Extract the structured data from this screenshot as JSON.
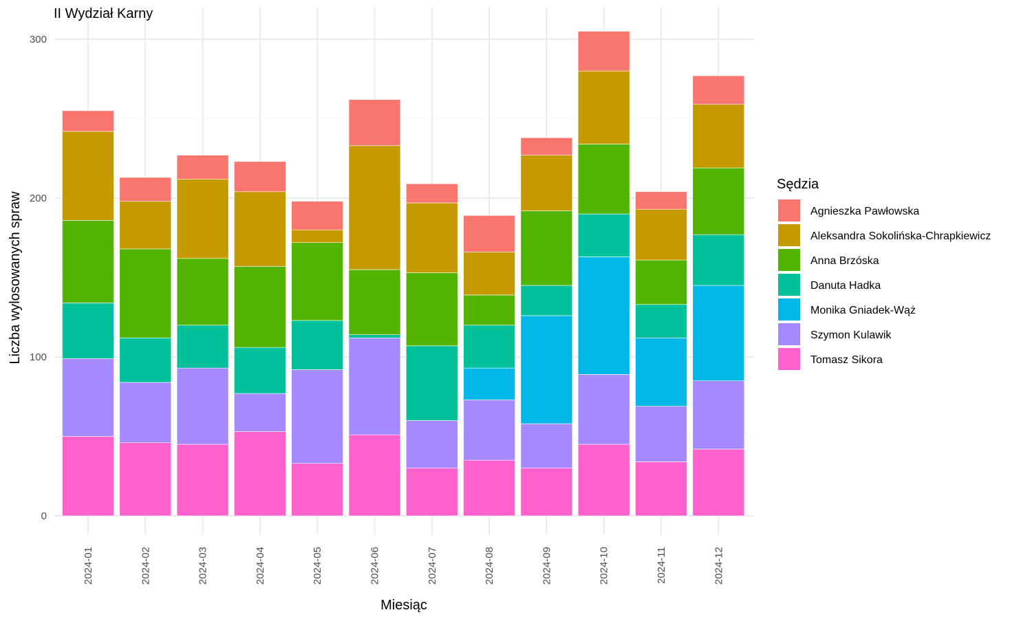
{
  "chart_data": {
    "type": "bar",
    "stacked": true,
    "title": "II Wydział Karny",
    "xlabel": "Miesiąc",
    "ylabel": "Liczba wylosowanych spraw",
    "ylim": [
      0,
      305
    ],
    "yticks": [
      0,
      100,
      200,
      300
    ],
    "grid": true,
    "legend_title": "Sędzia",
    "legend_position": "right",
    "categories": [
      "2024-01",
      "2024-02",
      "2024-03",
      "2024-04",
      "2024-05",
      "2024-06",
      "2024-07",
      "2024-08",
      "2024-09",
      "2024-10",
      "2024-11",
      "2024-12"
    ],
    "series": [
      {
        "name": "Tomasz Sikora",
        "color": "#FF61CC",
        "values": [
          50,
          46,
          45,
          53,
          33,
          51,
          30,
          35,
          30,
          45,
          34,
          42
        ]
      },
      {
        "name": "Szymon Kulawik",
        "color": "#A58AFF",
        "values": [
          49,
          38,
          48,
          24,
          59,
          61,
          30,
          38,
          28,
          44,
          35,
          43
        ]
      },
      {
        "name": "Monika Gniadek-Wąż",
        "color": "#00B8E7",
        "values": [
          0,
          0,
          0,
          0,
          0,
          0,
          0,
          20,
          68,
          74,
          43,
          60
        ]
      },
      {
        "name": "Danuta Hadka",
        "color": "#00C19A",
        "values": [
          35,
          28,
          27,
          29,
          31,
          2,
          47,
          27,
          19,
          27,
          21,
          32
        ]
      },
      {
        "name": "Anna Brzóska",
        "color": "#53B400",
        "values": [
          52,
          56,
          42,
          51,
          49,
          41,
          46,
          19,
          47,
          44,
          28,
          42
        ]
      },
      {
        "name": "Aleksandra Sokolińska-Chrapkiewicz",
        "color": "#C49A00",
        "values": [
          56,
          30,
          50,
          47,
          8,
          78,
          44,
          27,
          35,
          46,
          32,
          40
        ]
      },
      {
        "name": "Agnieszka Pawłowska",
        "color": "#F8766D",
        "values": [
          13,
          15,
          15,
          19,
          18,
          29,
          12,
          23,
          11,
          25,
          11,
          18
        ]
      }
    ]
  }
}
